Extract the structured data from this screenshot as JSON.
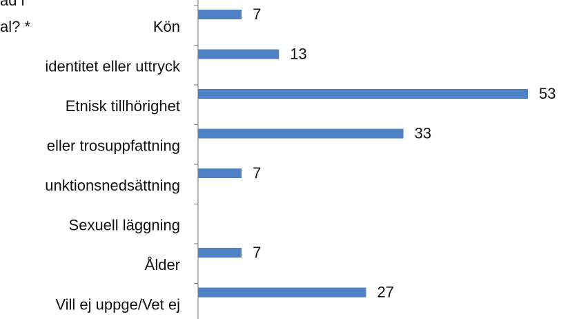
{
  "chart_data": {
    "type": "bar",
    "orientation": "horizontal",
    "title_lines": [
      "ad i",
      "al? *"
    ],
    "categories": [
      "Kön",
      "identitet eller uttryck",
      "Etnisk tillhörighet",
      "eller trosuppfattning",
      "unktionsnedsättning",
      "Sexuell läggning",
      "Ålder",
      "Vill ej uppge/Vet ej"
    ],
    "values": [
      7,
      13,
      53,
      33,
      7,
      0,
      7,
      27
    ],
    "color": "#4f81c7"
  }
}
